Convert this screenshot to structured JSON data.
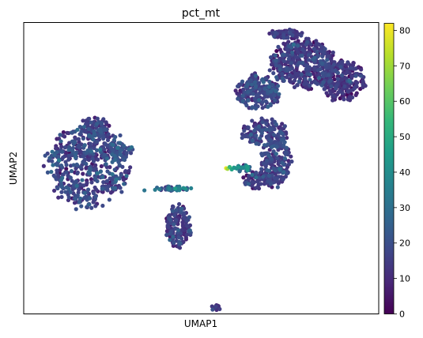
{
  "chart_data": {
    "type": "scatter",
    "title": "pct_mt",
    "xlabel": "UMAP1",
    "ylabel": "UMAP2",
    "xticks": [],
    "yticks": [],
    "xlim": [
      0,
      100
    ],
    "ylim": [
      0,
      100
    ],
    "colorbar": {
      "label": "",
      "min": 0,
      "max": 82,
      "ticks": [
        0,
        10,
        20,
        30,
        40,
        50,
        60,
        70,
        80
      ],
      "tick_labels": [
        "0",
        "10",
        "20",
        "30",
        "40",
        "50",
        "60",
        "70",
        "80"
      ],
      "colormap": "viridis",
      "colors": [
        "#440154",
        "#482878",
        "#3e4989",
        "#31688e",
        "#26828e",
        "#1f9e89",
        "#35b779",
        "#6ece58",
        "#b5de2b",
        "#fde725"
      ]
    },
    "clusters": [
      {
        "cx": 18,
        "cy": 51,
        "rx": 11,
        "ry": 14,
        "n": 520,
        "pct_mean": 16,
        "pct_sd": 6
      },
      {
        "cx": 20,
        "cy": 64,
        "rx": 4,
        "ry": 3.5,
        "n": 70,
        "pct_mean": 14,
        "pct_sd": 5
      },
      {
        "cx": 27,
        "cy": 56,
        "rx": 4,
        "ry": 3,
        "n": 55,
        "pct_mean": 18,
        "pct_sd": 6
      },
      {
        "cx": 42,
        "cy": 43,
        "rx": 5,
        "ry": 0.8,
        "n": 45,
        "pct_mean": 26,
        "pct_sd": 8
      },
      {
        "cx": 43.5,
        "cy": 30,
        "rx": 3.5,
        "ry": 7,
        "n": 150,
        "pct_mean": 14,
        "pct_sd": 5
      },
      {
        "cx": 54,
        "cy": 2,
        "rx": 1.5,
        "ry": 1,
        "n": 14,
        "pct_mean": 13,
        "pct_sd": 4
      },
      {
        "cx": 68,
        "cy": 62,
        "rx": 6,
        "ry": 5,
        "n": 140,
        "pct_mean": 15,
        "pct_sd": 5
      },
      {
        "cx": 71,
        "cy": 52,
        "rx": 4,
        "ry": 8,
        "n": 180,
        "pct_mean": 15,
        "pct_sd": 5
      },
      {
        "cx": 62,
        "cy": 50,
        "rx": 2.5,
        "ry": 1.2,
        "n": 24,
        "pct_mean": 28,
        "pct_sd": 12
      },
      {
        "cx": 66,
        "cy": 46,
        "rx": 4,
        "ry": 3,
        "n": 70,
        "pct_mean": 13,
        "pct_sd": 5
      },
      {
        "cx": 79,
        "cy": 86,
        "rx": 9,
        "ry": 8,
        "n": 420,
        "pct_mean": 13,
        "pct_sd": 5
      },
      {
        "cx": 90,
        "cy": 80,
        "rx": 6,
        "ry": 7,
        "n": 230,
        "pct_mean": 12,
        "pct_sd": 5
      },
      {
        "cx": 66,
        "cy": 76,
        "rx": 6,
        "ry": 6,
        "n": 210,
        "pct_mean": 15,
        "pct_sd": 5
      },
      {
        "cx": 74,
        "cy": 96,
        "rx": 5,
        "ry": 1.5,
        "n": 60,
        "pct_mean": 13,
        "pct_sd": 4
      }
    ],
    "highlight_points": [
      {
        "x": 57,
        "y": 50,
        "pct": 80
      },
      {
        "x": 57.4,
        "y": 49.8,
        "pct": 70
      },
      {
        "x": 58,
        "y": 50.4,
        "pct": 55
      },
      {
        "x": 58.6,
        "y": 49.6,
        "pct": 48
      },
      {
        "x": 59.2,
        "y": 50.2,
        "pct": 44
      },
      {
        "x": 60,
        "y": 49.9,
        "pct": 42
      },
      {
        "x": 45,
        "y": 43.2,
        "pct": 40
      },
      {
        "x": 44,
        "y": 42.8,
        "pct": 38
      },
      {
        "x": 41,
        "y": 43.0,
        "pct": 36
      },
      {
        "x": 37,
        "y": 42.6,
        "pct": 34
      },
      {
        "x": 34,
        "y": 42.4,
        "pct": 32
      }
    ]
  }
}
